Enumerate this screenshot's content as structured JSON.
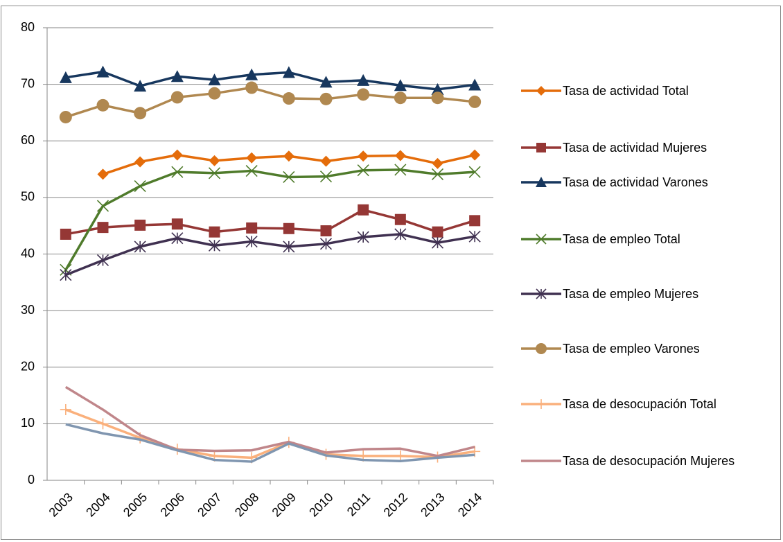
{
  "chart_data": {
    "type": "line",
    "categories": [
      "2003",
      "2004",
      "2005",
      "2006",
      "2007",
      "2008",
      "2009",
      "2010",
      "2011",
      "2012",
      "2013",
      "2014"
    ],
    "ylim": [
      0,
      80
    ],
    "yticks": [
      0,
      10,
      20,
      30,
      40,
      50,
      60,
      70,
      80
    ],
    "grid": true,
    "series": [
      {
        "name": "Tasa de actividad Total",
        "color": "#e46c0a",
        "marker": "diamond",
        "values": [
          null,
          54.1,
          56.3,
          57.5,
          56.5,
          57.0,
          57.3,
          56.4,
          57.3,
          57.4,
          56.0,
          57.5
        ]
      },
      {
        "name": "Tasa de actividad Mujeres",
        "color": "#953735",
        "marker": "square",
        "values": [
          43.5,
          44.7,
          45.1,
          45.3,
          43.9,
          44.6,
          44.5,
          44.1,
          47.8,
          46.1,
          43.9,
          45.9
        ]
      },
      {
        "name": "Tasa de actividad  Varones",
        "color": "#17375e",
        "marker": "triangle",
        "values": [
          71.2,
          72.2,
          69.7,
          71.4,
          70.8,
          71.7,
          72.1,
          70.4,
          70.7,
          69.8,
          69.1,
          69.9
        ]
      },
      {
        "name": "Tasa de empleo Total",
        "color": "#4f7b2b",
        "marker": "x",
        "values": [
          37.2,
          48.5,
          52.0,
          54.5,
          54.3,
          54.7,
          53.6,
          53.7,
          54.8,
          54.9,
          54.1,
          54.5
        ]
      },
      {
        "name": "Tasa de empleo Mujeres",
        "color": "#403151",
        "marker": "star",
        "values": [
          36.3,
          38.9,
          41.3,
          42.8,
          41.5,
          42.2,
          41.3,
          41.8,
          43.0,
          43.5,
          42.0,
          43.1
        ]
      },
      {
        "name": "Tasa de empleo Varones",
        "color": "#b08850",
        "marker": "circle",
        "values": [
          64.2,
          66.3,
          64.9,
          67.7,
          68.4,
          69.4,
          67.5,
          67.4,
          68.2,
          67.6,
          67.6,
          66.9
        ]
      },
      {
        "name": "Tasa de desocupación Total",
        "color": "#fab07c",
        "marker": "plus",
        "values": [
          12.5,
          10.0,
          7.5,
          5.5,
          4.3,
          4.0,
          6.7,
          4.6,
          4.3,
          4.3,
          4.1,
          5.1
        ]
      },
      {
        "name": "Tasa de desocupación Mujeres",
        "color": "#c0868a",
        "marker": "none",
        "values": [
          16.5,
          12.5,
          8.0,
          5.4,
          5.2,
          5.3,
          6.8,
          4.9,
          5.5,
          5.6,
          4.3,
          5.9
        ]
      },
      {
        "color": "#8096b0",
        "marker": "none",
        "values": [
          9.9,
          8.3,
          7.2,
          5.3,
          3.6,
          3.3,
          6.5,
          4.4,
          3.6,
          3.4,
          4.0,
          4.5
        ]
      }
    ]
  }
}
